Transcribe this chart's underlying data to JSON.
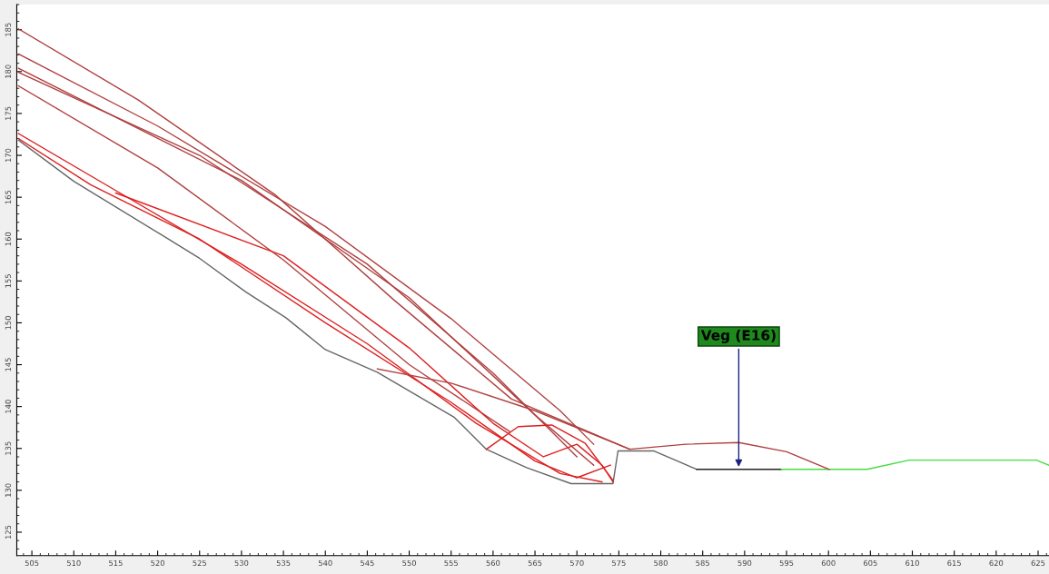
{
  "chart_data": {
    "type": "line",
    "xlim": [
      503.2,
      626.3
    ],
    "ylim": [
      122.2,
      188
    ],
    "xticks": [
      505,
      510,
      515,
      520,
      525,
      530,
      535,
      540,
      545,
      550,
      555,
      560,
      565,
      570,
      575,
      580,
      585,
      590,
      595,
      600,
      605,
      610,
      615,
      620,
      625
    ],
    "yticks": [
      125,
      130,
      135,
      140,
      145,
      150,
      155,
      160,
      165,
      170,
      175,
      180,
      185
    ],
    "grid": false,
    "marker": "none",
    "line_style": "solid",
    "series": [
      {
        "color": "#666666",
        "x": [
          503.4,
          510,
          520.3,
          525,
          530.5,
          535.3,
          540,
          546.2,
          555.4,
          559.2,
          564,
          569.3,
          574.3,
          574.9,
          576.5,
          579.2,
          584.3
        ],
        "values": [
          171.8,
          166.9,
          160.6,
          157.7,
          153.7,
          150.6,
          146.8,
          144.1,
          138.7,
          134.9,
          132.7,
          130.8,
          130.8,
          134.7,
          134.7,
          134.7,
          132.5
        ]
      },
      {
        "color": "#222222",
        "x": [
          584.3,
          589.3,
          594.4
        ],
        "values": [
          132.5,
          132.5,
          132.5
        ]
      },
      {
        "color": "#44dd44",
        "x": [
          594.4,
          599.5,
          604.6,
          609.6,
          614.5,
          619.7,
          624.8,
          626.3
        ],
        "values": [
          132.5,
          132.5,
          132.5,
          133.6,
          133.6,
          133.6,
          133.6,
          133
        ]
      },
      {
        "color": "#b04040",
        "x": [
          503.4,
          517.7,
          534,
          548.1,
          562.2,
          576.3,
          583,
          589.3,
          595,
          600.1
        ],
        "values": [
          185.1,
          176.6,
          165.3,
          152.8,
          140.9,
          134.9,
          135.5,
          135.7,
          134.6,
          132.5
        ]
      },
      {
        "color": "#b04040",
        "x": [
          503.4,
          520,
          540,
          555,
          568,
          572
        ],
        "values": [
          182.1,
          173.5,
          161.5,
          150.5,
          139.5,
          135.5
        ]
      },
      {
        "color": "#b04040",
        "x": [
          503.4,
          530,
          550,
          565,
          572
        ],
        "values": [
          180.4,
          167,
          153,
          139,
          133
        ]
      },
      {
        "color": "#b04040",
        "x": [
          503.4,
          525,
          545,
          560,
          570
        ],
        "values": [
          179.9,
          170,
          157,
          144,
          134
        ]
      },
      {
        "color": "#b04040",
        "x": [
          503.4,
          520,
          535,
          550,
          562
        ],
        "values": [
          178.3,
          168.5,
          157.5,
          145,
          137
        ]
      },
      {
        "color": "#dd2020",
        "x": [
          503.4,
          515,
          530,
          545,
          558,
          568,
          573
        ],
        "values": [
          172.6,
          165.8,
          157,
          147.5,
          138,
          132,
          131
        ]
      },
      {
        "color": "#dd2020",
        "x": [
          503.4,
          512,
          525,
          540,
          555,
          565,
          570,
          574
        ],
        "values": [
          172,
          166.5,
          160,
          150,
          140.5,
          133.5,
          131.5,
          133
        ]
      },
      {
        "color": "#dd2020",
        "x": [
          515,
          535,
          550,
          560,
          566,
          570,
          573,
          574.3
        ],
        "values": [
          165.5,
          158,
          147,
          138,
          134,
          135.5,
          133,
          131
        ]
      },
      {
        "color": "#b04040",
        "x": [
          546.2,
          555,
          565,
          576.3
        ],
        "values": [
          144.5,
          142.8,
          139.5,
          134.9
        ]
      },
      {
        "color": "#dd2020",
        "x": [
          559.2,
          563,
          567,
          571,
          574.3
        ],
        "values": [
          134.9,
          137.6,
          137.8,
          135.6,
          131.2
        ]
      }
    ],
    "annotations": [
      {
        "text": "Veg (E16)",
        "x": 589.3,
        "y": 132.5
      }
    ]
  }
}
